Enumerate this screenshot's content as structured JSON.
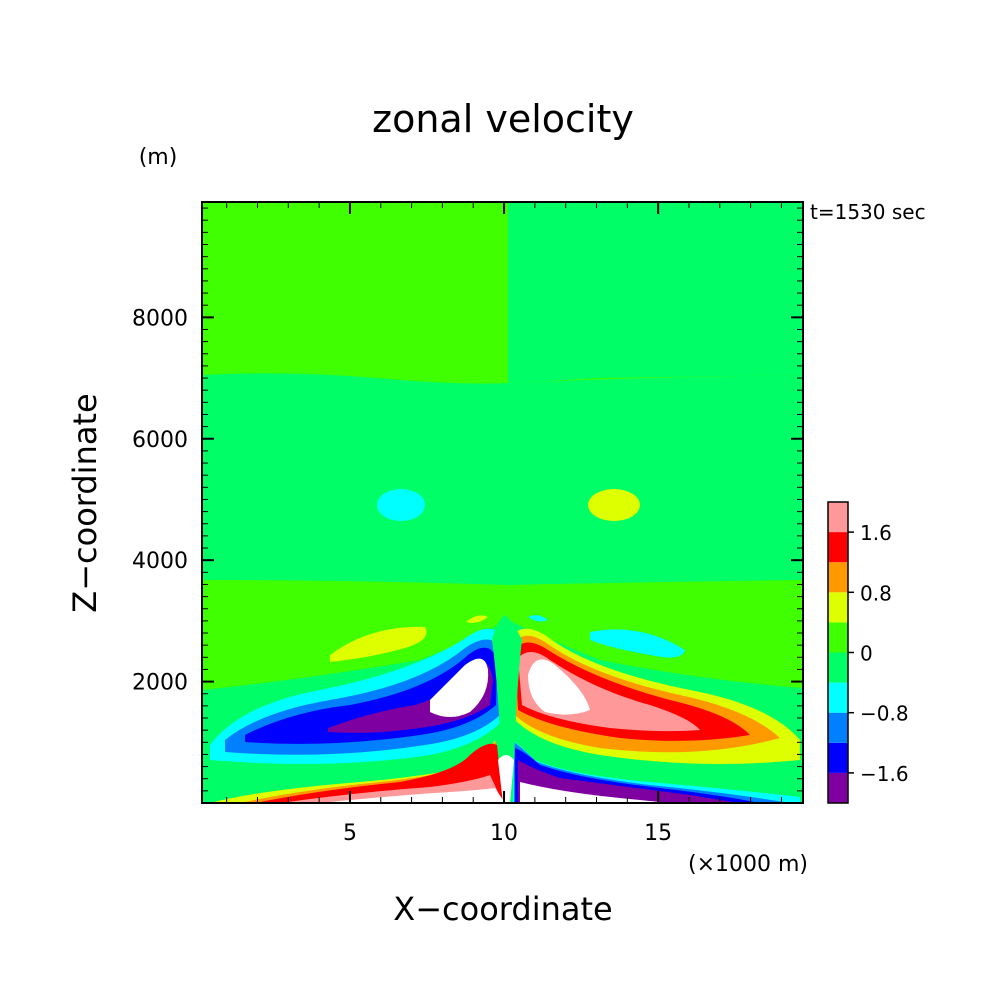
{
  "chart_data": {
    "type": "heatmap",
    "title": "zonal velocity",
    "xlabel": "X−coordinate",
    "ylabel": "Z−coordinate",
    "x_unit": "(×1000 m)",
    "y_unit": "(m)",
    "time_label": "t=1530 sec",
    "xlim": [
      0.2,
      19.7
    ],
    "ylim": [
      0,
      9900
    ],
    "x_ticks": [
      5,
      10,
      15
    ],
    "y_ticks": [
      2000,
      4000,
      6000,
      8000
    ],
    "x_tick_labels": [
      "5",
      "10",
      "15"
    ],
    "y_tick_labels": [
      "2000",
      "4000",
      "6000",
      "8000"
    ],
    "colorbar": {
      "levels": [
        -2.0,
        -1.6,
        -1.2,
        -0.8,
        -0.4,
        0,
        0.4,
        0.8,
        1.2,
        1.6,
        2.0
      ],
      "colors": [
        "#7f00a0",
        "#0000ff",
        "#0080ff",
        "#00ffff",
        "#00ff66",
        "#40ff00",
        "#ddff00",
        "#ff9900",
        "#ff0000",
        "#ff9999"
      ],
      "tick_labels": [
        "−1.6",
        "−0.8",
        "0",
        "0.8",
        "1.6"
      ]
    }
  }
}
